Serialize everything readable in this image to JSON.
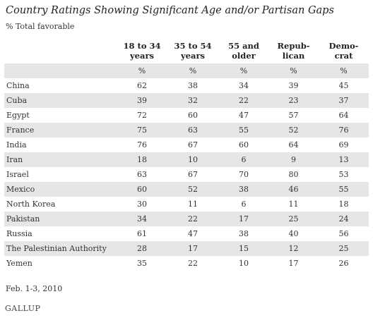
{
  "chart_data": {
    "type": "table",
    "title": "Country Ratings Showing Significant Age and/or Partisan Gaps",
    "subtitle": "% Total favorable",
    "columns": [
      {
        "line1": "18 to 34",
        "line2": "years"
      },
      {
        "line1": "35 to 54",
        "line2": "years"
      },
      {
        "line1": "55 and",
        "line2": "older"
      },
      {
        "line1": "Repub-",
        "line2": "lican"
      },
      {
        "line1": "Demo-",
        "line2": "crat"
      }
    ],
    "unit": "%",
    "rows": [
      {
        "country": "China",
        "values": [
          "62",
          "38",
          "34",
          "39",
          "45"
        ]
      },
      {
        "country": "Cuba",
        "values": [
          "39",
          "32",
          "22",
          "23",
          "37"
        ]
      },
      {
        "country": "Egypt",
        "values": [
          "72",
          "60",
          "47",
          "57",
          "64"
        ]
      },
      {
        "country": "France",
        "values": [
          "75",
          "63",
          "55",
          "52",
          "76"
        ]
      },
      {
        "country": "India",
        "values": [
          "76",
          "67",
          "60",
          "64",
          "69"
        ]
      },
      {
        "country": "Iran",
        "values": [
          "18",
          "10",
          "6",
          "9",
          "13"
        ]
      },
      {
        "country": "Israel",
        "values": [
          "63",
          "67",
          "70",
          "80",
          "53"
        ]
      },
      {
        "country": "Mexico",
        "values": [
          "60",
          "52",
          "38",
          "46",
          "55"
        ]
      },
      {
        "country": "North Korea",
        "values": [
          "30",
          "11",
          "6",
          "11",
          "18"
        ]
      },
      {
        "country": "Pakistan",
        "values": [
          "34",
          "22",
          "17",
          "25",
          "24"
        ]
      },
      {
        "country": "Russia",
        "values": [
          "61",
          "47",
          "38",
          "40",
          "56"
        ]
      },
      {
        "country": "The Palestinian Authority",
        "values": [
          "28",
          "17",
          "15",
          "12",
          "25"
        ]
      },
      {
        "country": "Yemen",
        "values": [
          "35",
          "22",
          "10",
          "17",
          "26"
        ]
      }
    ],
    "source": "Feb. 1-3, 2010",
    "logo": "GALLUP"
  },
  "colors": {
    "stripe": "#e6e6e6",
    "text": "#222222"
  }
}
